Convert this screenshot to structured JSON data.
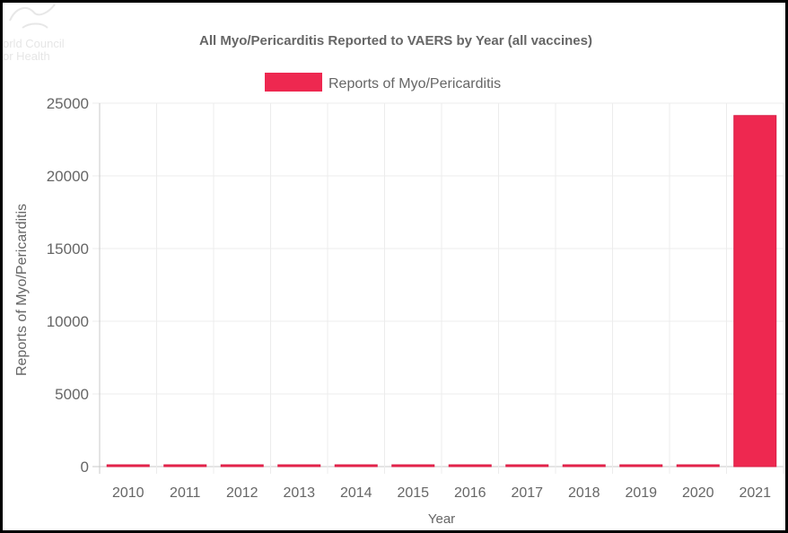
{
  "logo": {
    "line1": "orld Council",
    "line2": "or Health"
  },
  "chart_data": {
    "type": "bar",
    "title": "All Myo/Pericarditis Reported to VAERS by Year (all vaccines)",
    "xlabel": "Year",
    "ylabel": "Reports of Myo/Pericarditis",
    "legend": {
      "position": "top-center"
    },
    "grid": true,
    "ylim": [
      0,
      25000
    ],
    "yticks": [
      0,
      5000,
      10000,
      15000,
      20000,
      25000
    ],
    "categories": [
      "2010",
      "2011",
      "2012",
      "2013",
      "2014",
      "2015",
      "2016",
      "2017",
      "2018",
      "2019",
      "2020",
      "2021"
    ],
    "series": [
      {
        "name": "Reports of Myo/Pericarditis",
        "color": "#ee2850",
        "values": [
          60,
          70,
          100,
          95,
          65,
          40,
          45,
          70,
          90,
          80,
          70,
          24150
        ]
      }
    ]
  }
}
